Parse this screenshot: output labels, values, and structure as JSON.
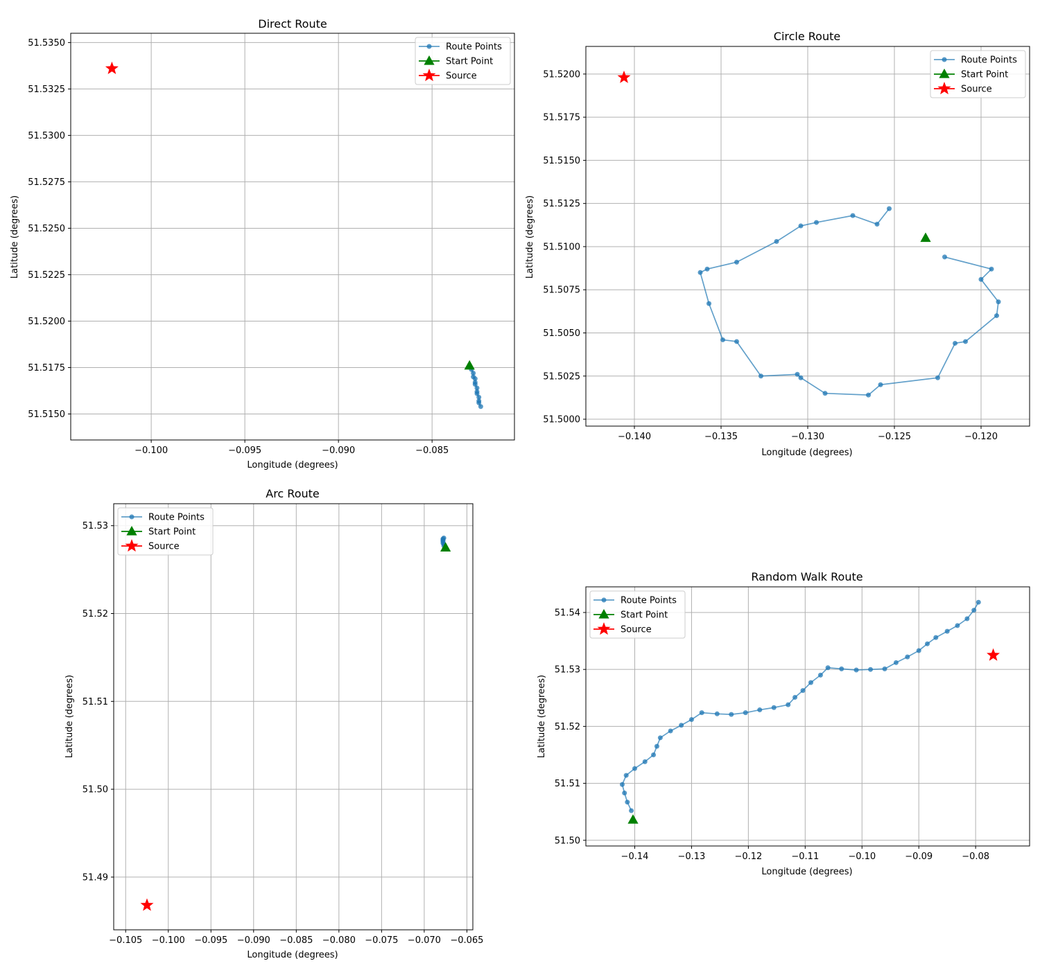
{
  "figure": {
    "background": "#ffffff",
    "route_color": "#1f77b4",
    "start_color": "#008000",
    "source_color": "#ff0000",
    "grid_color": "#b0b0b0"
  },
  "chart_data": [
    {
      "type": "scatter",
      "title": "Direct Route",
      "xlabel": "Longitude (degrees)",
      "ylabel": "Latitude (degrees)",
      "xlim": [
        -0.1043,
        -0.0806
      ],
      "ylim": [
        51.5136,
        51.5355
      ],
      "xticks": [
        -0.1,
        -0.095,
        -0.09,
        -0.085
      ],
      "xtick_labels": [
        "−0.100",
        "−0.095",
        "−0.090",
        "−0.085"
      ],
      "yticks": [
        51.515,
        51.5175,
        51.52,
        51.5225,
        51.525,
        51.5275,
        51.53,
        51.5325,
        51.535
      ],
      "ytick_labels": [
        "51.5150",
        "51.5175",
        "51.5200",
        "51.5225",
        "51.5250",
        "51.5275",
        "51.5300",
        "51.5325",
        "51.5350"
      ],
      "grid": true,
      "legend_position": "top-right",
      "legend": [
        "Route Points",
        "Start Point",
        "Source"
      ],
      "route": {
        "name": "Route Points",
        "x": [
          -0.0829,
          -0.0828,
          -0.0828,
          -0.0827,
          -0.0827,
          -0.0827,
          -0.0826,
          -0.0826,
          -0.0826,
          -0.0825,
          -0.0825,
          -0.0825,
          -0.0824
        ],
        "y": [
          51.5174,
          51.5172,
          51.517,
          51.5169,
          51.5167,
          51.5166,
          51.5164,
          51.5162,
          51.5161,
          51.5159,
          51.5157,
          51.5156,
          51.5154
        ]
      },
      "start": {
        "name": "Start Point",
        "x": -0.083,
        "y": 51.5176
      },
      "source": {
        "name": "Source",
        "x": -0.1021,
        "y": 51.5336
      }
    },
    {
      "type": "scatter",
      "title": "Circle Route",
      "xlabel": "Longitude (degrees)",
      "ylabel": "Latitude (degrees)",
      "xlim": [
        -0.1428,
        -0.1172
      ],
      "ylim": [
        51.4996,
        51.5216
      ],
      "xticks": [
        -0.14,
        -0.135,
        -0.13,
        -0.125,
        -0.12
      ],
      "xtick_labels": [
        "−0.140",
        "−0.135",
        "−0.130",
        "−0.125",
        "−0.120"
      ],
      "yticks": [
        51.5,
        51.5025,
        51.505,
        51.5075,
        51.51,
        51.5125,
        51.515,
        51.5175,
        51.52
      ],
      "ytick_labels": [
        "51.5000",
        "51.5025",
        "51.5050",
        "51.5075",
        "51.5100",
        "51.5125",
        "51.5150",
        "51.5175",
        "51.5200"
      ],
      "grid": true,
      "legend_position": "top-right",
      "legend": [
        "Route Points",
        "Start Point",
        "Source"
      ],
      "route": {
        "name": "Route Points",
        "x": [
          -0.1221,
          -0.1194,
          -0.12,
          -0.119,
          -0.1191,
          -0.1209,
          -0.1215,
          -0.1225,
          -0.1258,
          -0.1265,
          -0.129,
          -0.1304,
          -0.1306,
          -0.1327,
          -0.1341,
          -0.1349,
          -0.1357,
          -0.1362,
          -0.1358,
          -0.1341,
          -0.1318,
          -0.1304,
          -0.1295,
          -0.1274,
          -0.126,
          -0.1253
        ],
        "y": [
          51.5094,
          51.5087,
          51.5081,
          51.5068,
          51.506,
          51.5045,
          51.5044,
          51.5024,
          51.502,
          51.5014,
          51.5015,
          51.5024,
          51.5026,
          51.5025,
          51.5045,
          51.5046,
          51.5067,
          51.5085,
          51.5087,
          51.5091,
          51.5103,
          51.5112,
          51.5114,
          51.5118,
          51.5113,
          51.5122
        ]
      },
      "start": {
        "name": "Start Point",
        "x": -0.1232,
        "y": 51.5105
      },
      "source": {
        "name": "Source",
        "x": -0.1406,
        "y": 51.5198
      }
    },
    {
      "type": "scatter",
      "title": "Arc Route",
      "xlabel": "Longitude (degrees)",
      "ylabel": "Latitude (degrees)",
      "xlim": [
        -0.1064,
        -0.0643
      ],
      "ylim": [
        51.484,
        51.5325
      ],
      "xticks": [
        -0.105,
        -0.1,
        -0.095,
        -0.09,
        -0.085,
        -0.08,
        -0.075,
        -0.07,
        -0.065
      ],
      "xtick_labels": [
        "−0.105",
        "−0.100",
        "−0.095",
        "−0.090",
        "−0.085",
        "−0.080",
        "−0.075",
        "−0.070",
        "−0.065"
      ],
      "yticks": [
        51.49,
        51.5,
        51.51,
        51.52,
        51.53
      ],
      "ytick_labels": [
        "51.49",
        "51.50",
        "51.51",
        "51.52",
        "51.53"
      ],
      "grid": true,
      "legend_position": "top-left",
      "legend": [
        "Route Points",
        "Start Point",
        "Source"
      ],
      "route": {
        "name": "Route Points",
        "x": [
          -0.0677,
          -0.0677,
          -0.0678,
          -0.0678,
          -0.0678,
          -0.0678,
          -0.0678,
          -0.0677
        ],
        "y": [
          51.5277,
          51.5279,
          51.528,
          51.5282,
          51.5283,
          51.5284,
          51.5285,
          51.5286
        ]
      },
      "start": {
        "name": "Start Point",
        "x": -0.0675,
        "y": 51.5275
      },
      "source": {
        "name": "Source",
        "x": -0.1025,
        "y": 51.4868
      }
    },
    {
      "type": "scatter",
      "title": "Random Walk Route",
      "xlabel": "Longitude (degrees)",
      "ylabel": "Latitude (degrees)",
      "xlim": [
        -0.1486,
        -0.0705
      ],
      "ylim": [
        51.499,
        51.5445
      ],
      "xticks": [
        -0.14,
        -0.13,
        -0.12,
        -0.11,
        -0.1,
        -0.09,
        -0.08
      ],
      "xtick_labels": [
        "−0.14",
        "−0.13",
        "−0.12",
        "−0.11",
        "−0.10",
        "−0.09",
        "−0.08"
      ],
      "yticks": [
        51.5,
        51.51,
        51.52,
        51.53,
        51.54
      ],
      "ytick_labels": [
        "51.50",
        "51.51",
        "51.52",
        "51.53",
        "51.54"
      ],
      "grid": true,
      "legend_position": "top-left",
      "legend": [
        "Route Points",
        "Start Point",
        "Source"
      ],
      "route": {
        "name": "Route Points",
        "x": [
          -0.1406,
          -0.1413,
          -0.1418,
          -0.1422,
          -0.1415,
          -0.14,
          -0.1382,
          -0.1367,
          -0.1361,
          -0.1355,
          -0.1337,
          -0.1318,
          -0.13,
          -0.1282,
          -0.1255,
          -0.123,
          -0.1205,
          -0.118,
          -0.1155,
          -0.113,
          -0.1118,
          -0.1104,
          -0.109,
          -0.1073,
          -0.106,
          -0.1036,
          -0.101,
          -0.0985,
          -0.096,
          -0.094,
          -0.092,
          -0.09,
          -0.0885,
          -0.087,
          -0.085,
          -0.0832,
          -0.0815,
          -0.0803,
          -0.0795
        ],
        "y": [
          51.5052,
          51.5067,
          51.5083,
          51.5098,
          51.5114,
          51.5126,
          51.5138,
          51.515,
          51.5165,
          51.518,
          51.5192,
          51.5202,
          51.5212,
          51.5224,
          51.5222,
          51.5221,
          51.5224,
          51.5229,
          51.5233,
          51.5238,
          51.5251,
          51.5263,
          51.5277,
          51.529,
          51.5303,
          51.5301,
          51.5299,
          51.53,
          51.5301,
          51.5312,
          51.5322,
          51.5333,
          51.5345,
          51.5356,
          51.5367,
          51.5377,
          51.5389,
          51.5404,
          51.5418
        ]
      },
      "start": {
        "name": "Start Point",
        "x": -0.1403,
        "y": 51.5036
      },
      "source": {
        "name": "Source",
        "x": -0.0769,
        "y": 51.5325
      }
    }
  ]
}
